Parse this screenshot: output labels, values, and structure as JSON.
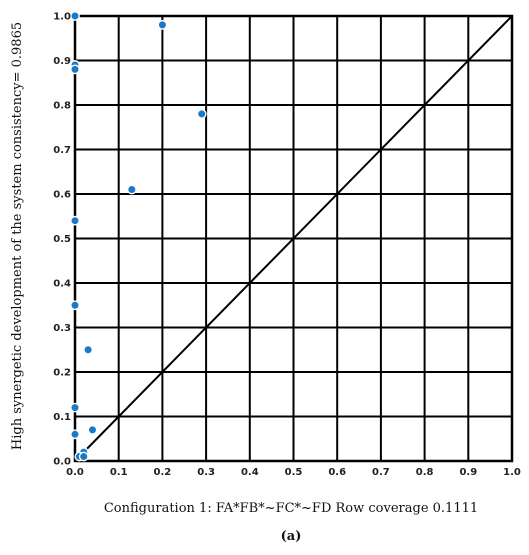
{
  "chart_data": {
    "type": "scatter",
    "title": "",
    "xlabel": "Configuration 1: FA*FB*~FC*~FD    Row coverage 0.1111",
    "ylabel": "High synergetic development of the system consistency= 0.9865",
    "panel_label": "(a)",
    "xlim": [
      0.0,
      1.0
    ],
    "ylim": [
      0.0,
      1.0
    ],
    "x_ticks": [
      "0.0",
      "0.1",
      "0.2",
      "0.3",
      "0.4",
      "0.5",
      "0.6",
      "0.7",
      "0.8",
      "0.9",
      "1.0"
    ],
    "y_ticks": [
      "0.0",
      "0.1",
      "0.2",
      "0.3",
      "0.4",
      "0.5",
      "0.6",
      "0.7",
      "0.8",
      "0.9",
      "1.0"
    ],
    "grid": true,
    "diagonal_reference_line": true,
    "point_color": "#1a7ac8",
    "points": [
      {
        "x": 0.0,
        "y": 1.0
      },
      {
        "x": 0.2,
        "y": 0.98
      },
      {
        "x": 0.0,
        "y": 0.89
      },
      {
        "x": 0.0,
        "y": 0.88
      },
      {
        "x": 0.29,
        "y": 0.78
      },
      {
        "x": 0.13,
        "y": 0.61
      },
      {
        "x": 0.0,
        "y": 0.54
      },
      {
        "x": 0.0,
        "y": 0.35
      },
      {
        "x": 0.03,
        "y": 0.25
      },
      {
        "x": 0.0,
        "y": 0.12
      },
      {
        "x": 0.04,
        "y": 0.07
      },
      {
        "x": 0.0,
        "y": 0.06
      },
      {
        "x": 0.02,
        "y": 0.02
      },
      {
        "x": 0.01,
        "y": 0.01
      },
      {
        "x": 0.02,
        "y": 0.01
      }
    ]
  }
}
